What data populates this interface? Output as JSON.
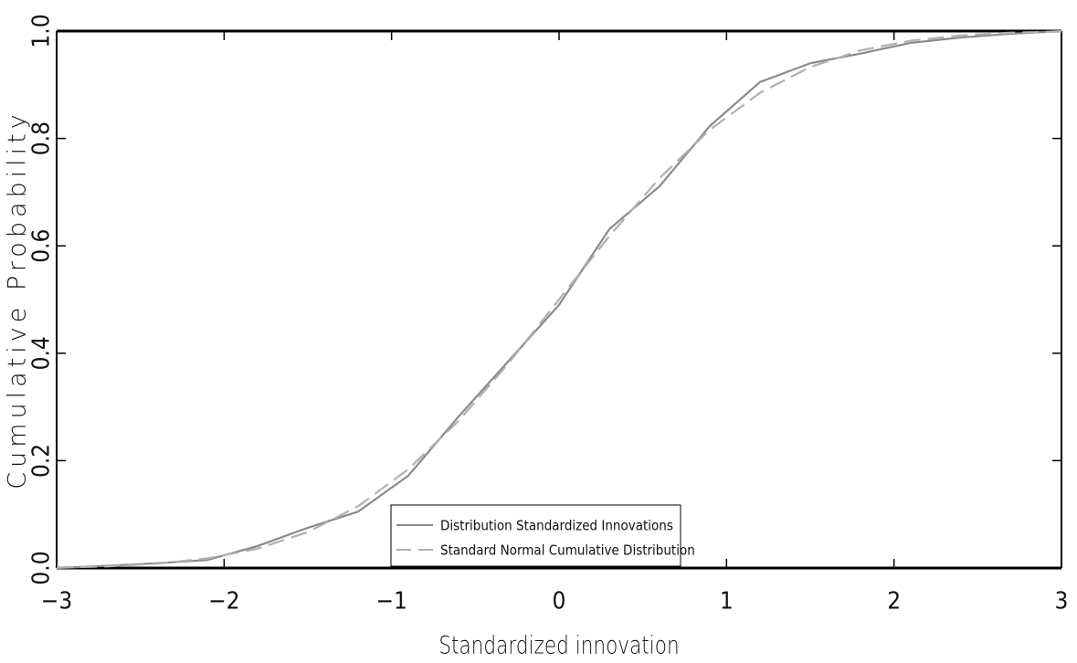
{
  "chart_data": {
    "type": "line",
    "x_label": "Standardized innovation",
    "y_label": "Cumulative Probability",
    "x": [
      -3,
      -2.7,
      -2.4,
      -2.1,
      -1.8,
      -1.5,
      -1.2,
      -0.9,
      -0.6,
      -0.3,
      0,
      0.3,
      0.6,
      0.9,
      1.2,
      1.5,
      1.8,
      2.1,
      2.4,
      2.7,
      3
    ],
    "series": [
      {
        "name": "Distribution Standardized Innovations",
        "color": "#8a8a8a",
        "dash": false,
        "values": [
          0.0,
          0.004,
          0.009,
          0.015,
          0.041,
          0.075,
          0.105,
          0.172,
          0.282,
          0.386,
          0.49,
          0.631,
          0.711,
          0.823,
          0.905,
          0.94,
          0.958,
          0.978,
          0.988,
          0.995,
          1.0
        ]
      },
      {
        "name": "Standard Normal Cumulative Distribution",
        "color": "#b0b0b0",
        "dash": true,
        "values": [
          0.001,
          0.003,
          0.008,
          0.018,
          0.036,
          0.067,
          0.115,
          0.184,
          0.274,
          0.382,
          0.5,
          0.618,
          0.726,
          0.816,
          0.885,
          0.933,
          0.964,
          0.982,
          0.992,
          0.997,
          0.999
        ]
      }
    ],
    "xlim": [
      -3,
      3
    ],
    "xticks": [
      {
        "value": -3,
        "label": "−3"
      },
      {
        "value": -2,
        "label": "−2"
      },
      {
        "value": -1,
        "label": "−1"
      },
      0,
      1,
      2,
      3
    ],
    "ylim": [
      0,
      1
    ],
    "yticks": [
      {
        "value": 0,
        "label": "0.0"
      },
      0.2,
      0.4,
      0.6,
      0.8,
      {
        "value": 1,
        "label": "1.0"
      }
    ],
    "grid": false,
    "legend": "bottom"
  }
}
